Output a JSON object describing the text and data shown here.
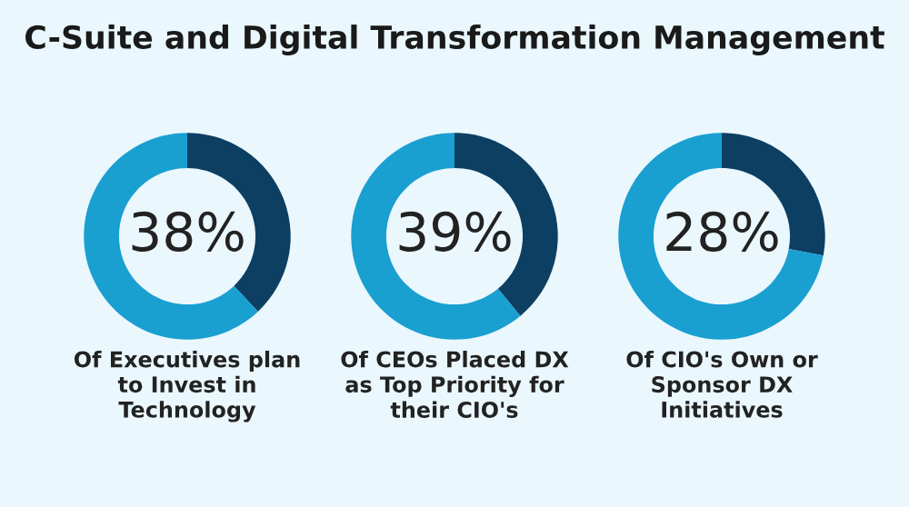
{
  "chart_data": [
    {
      "type": "donut",
      "title": "C-Suite and Digital Transformation Management",
      "categories": [
        null,
        null
      ],
      "values": [
        38,
        62
      ],
      "colors": [
        "#0d3f63",
        "#1a9fd1"
      ],
      "value_labels": [
        "38%",
        null
      ],
      "xlabel": "Of Executives plan\nto Invest in\nTechnology"
    },
    {
      "type": "donut",
      "categories": [
        null,
        null
      ],
      "values": [
        39,
        61
      ],
      "colors": [
        "#0d3f63",
        "#1a9fd1"
      ],
      "value_labels": [
        "39%",
        null
      ],
      "xlabel": "Of CEOs Placed DX\nas Top Priority for\ntheir CIO's"
    },
    {
      "type": "donut",
      "categories": [
        null,
        null
      ],
      "values": [
        28,
        72
      ],
      "colors": [
        "#0d3f63",
        "#1a9fd1"
      ],
      "value_labels": [
        "28%",
        null
      ],
      "xlabel": "Of CIO's Own or\nSponsor DX\nInitiatives"
    }
  ]
}
